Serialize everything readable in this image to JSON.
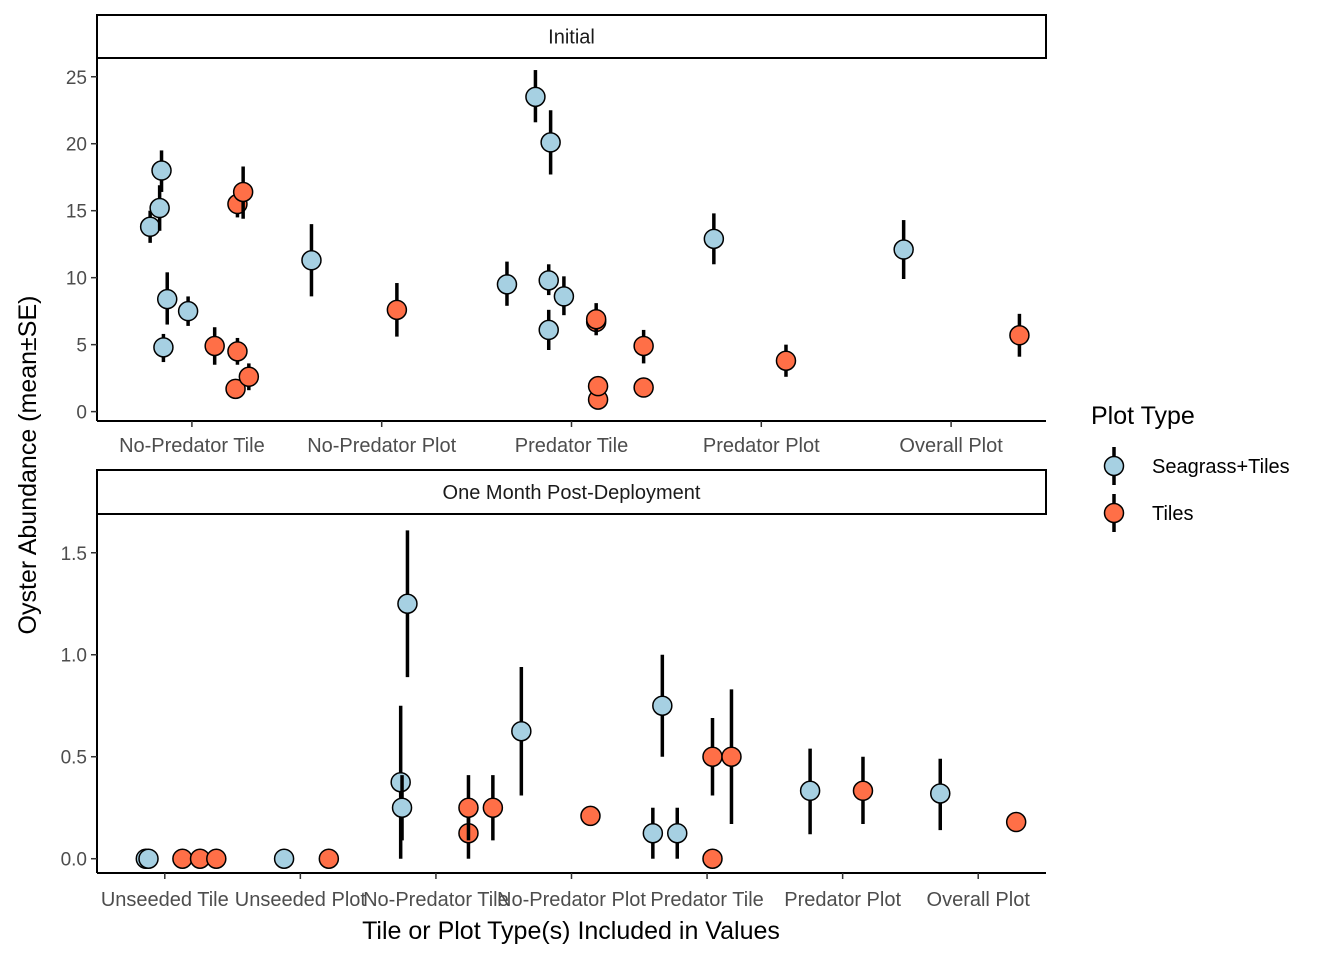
{
  "chart_data": {
    "type": "scatter",
    "ylabel": "Oyster Abundance (mean±SE)",
    "xlabel": "Tile or Plot Type(s) Included in Values",
    "legend": {
      "title": "Plot Type",
      "placement": "right",
      "entries": [
        {
          "name": "Seagrass+Tiles",
          "color": "#A6D0E2"
        },
        {
          "name": "Tiles",
          "color": "#FF6F47"
        }
      ]
    },
    "error_bar_color": "#000000",
    "panels": [
      {
        "name": "initial",
        "strip": "Initial",
        "categories": [
          "No-Predator Tile",
          "No-Predator Plot",
          "Predator Tile",
          "Predator Plot",
          "Overall Plot"
        ],
        "ylim": [
          -0.7,
          26.4
        ],
        "yticks": [
          0,
          5,
          10,
          15,
          20,
          25
        ],
        "ytick_labels": [
          "0",
          "5",
          "10",
          "15",
          "20",
          "25"
        ],
        "points": [
          {
            "series": "Seagrass+Tiles",
            "x": 0.78,
            "y": 13.8,
            "lo": 12.6,
            "hi": 15.0
          },
          {
            "series": "Seagrass+Tiles",
            "x": 0.83,
            "y": 15.2,
            "lo": 13.5,
            "hi": 16.9
          },
          {
            "series": "Seagrass+Tiles",
            "x": 0.84,
            "y": 18.0,
            "lo": 16.4,
            "hi": 19.5
          },
          {
            "series": "Seagrass+Tiles",
            "x": 0.85,
            "y": 4.8,
            "lo": 3.7,
            "hi": 5.8
          },
          {
            "series": "Seagrass+Tiles",
            "x": 0.87,
            "y": 8.4,
            "lo": 6.5,
            "hi": 10.4
          },
          {
            "series": "Seagrass+Tiles",
            "x": 0.98,
            "y": 7.5,
            "lo": 6.4,
            "hi": 8.6
          },
          {
            "series": "Tiles",
            "x": 1.12,
            "y": 4.9,
            "lo": 3.5,
            "hi": 6.3
          },
          {
            "series": "Tiles",
            "x": 1.23,
            "y": 1.7,
            "lo": 1.2,
            "hi": 2.2
          },
          {
            "series": "Tiles",
            "x": 1.24,
            "y": 4.5,
            "lo": 3.5,
            "hi": 5.5
          },
          {
            "series": "Tiles",
            "x": 1.24,
            "y": 15.5,
            "lo": 14.5,
            "hi": 16.5
          },
          {
            "series": "Tiles",
            "x": 1.27,
            "y": 16.4,
            "lo": 14.4,
            "hi": 18.3
          },
          {
            "series": "Tiles",
            "x": 1.3,
            "y": 2.6,
            "lo": 1.6,
            "hi": 3.6
          },
          {
            "series": "Seagrass+Tiles",
            "x": 1.63,
            "y": 11.3,
            "lo": 8.6,
            "hi": 14.0
          },
          {
            "series": "Tiles",
            "x": 2.08,
            "y": 7.6,
            "lo": 5.6,
            "hi": 9.6
          },
          {
            "series": "Seagrass+Tiles",
            "x": 2.66,
            "y": 9.5,
            "lo": 7.9,
            "hi": 11.2
          },
          {
            "series": "Seagrass+Tiles",
            "x": 2.81,
            "y": 23.5,
            "lo": 21.6,
            "hi": 25.5
          },
          {
            "series": "Seagrass+Tiles",
            "x": 2.88,
            "y": 6.1,
            "lo": 4.6,
            "hi": 7.6
          },
          {
            "series": "Seagrass+Tiles",
            "x": 2.88,
            "y": 9.8,
            "lo": 8.7,
            "hi": 11.0
          },
          {
            "series": "Seagrass+Tiles",
            "x": 2.89,
            "y": 20.1,
            "lo": 17.7,
            "hi": 22.5
          },
          {
            "series": "Seagrass+Tiles",
            "x": 2.96,
            "y": 8.6,
            "lo": 7.2,
            "hi": 10.1
          },
          {
            "series": "Tiles",
            "x": 3.13,
            "y": 6.7,
            "lo": 5.7,
            "hi": 7.7
          },
          {
            "series": "Tiles",
            "x": 3.13,
            "y": 6.9,
            "lo": 6.0,
            "hi": 8.1
          },
          {
            "series": "Tiles",
            "x": 3.14,
            "y": 0.9,
            "lo": 0.5,
            "hi": 1.3
          },
          {
            "series": "Tiles",
            "x": 3.14,
            "y": 1.9,
            "lo": 1.3,
            "hi": 2.5
          },
          {
            "series": "Tiles",
            "x": 3.38,
            "y": 1.8,
            "lo": 1.4,
            "hi": 2.2
          },
          {
            "series": "Tiles",
            "x": 3.38,
            "y": 4.9,
            "lo": 3.6,
            "hi": 6.1
          },
          {
            "series": "Seagrass+Tiles",
            "x": 3.75,
            "y": 12.9,
            "lo": 11.0,
            "hi": 14.8
          },
          {
            "series": "Tiles",
            "x": 4.13,
            "y": 3.8,
            "lo": 2.6,
            "hi": 5.0
          },
          {
            "series": "Seagrass+Tiles",
            "x": 4.75,
            "y": 12.1,
            "lo": 9.9,
            "hi": 14.3
          },
          {
            "series": "Tiles",
            "x": 5.36,
            "y": 5.7,
            "lo": 4.1,
            "hi": 7.3
          }
        ]
      },
      {
        "name": "post",
        "strip": "One Month Post-Deployment",
        "categories": [
          "Unseeded Tile",
          "Unseeded Plot",
          "No-Predator Tile",
          "No-Predator Plot",
          "Predator Tile",
          "Predator Plot",
          "Overall Plot"
        ],
        "ylim": [
          -0.07,
          1.69
        ],
        "yticks": [
          0,
          0.5,
          1.0,
          1.5
        ],
        "ytick_labels": [
          "0.0",
          "0.5",
          "1.0",
          "1.5"
        ],
        "points": [
          {
            "series": "Seagrass+Tiles",
            "x": 0.86,
            "y": 0.0,
            "lo": 0.0,
            "hi": 0.0
          },
          {
            "series": "Seagrass+Tiles",
            "x": 0.88,
            "y": 0.0,
            "lo": 0.0,
            "hi": 0.0
          },
          {
            "series": "Tiles",
            "x": 1.13,
            "y": 0.0,
            "lo": 0.0,
            "hi": 0.0
          },
          {
            "series": "Tiles",
            "x": 1.26,
            "y": 0.0,
            "lo": 0.0,
            "hi": 0.0
          },
          {
            "series": "Tiles",
            "x": 1.38,
            "y": 0.0,
            "lo": 0.0,
            "hi": 0.0
          },
          {
            "series": "Seagrass+Tiles",
            "x": 1.88,
            "y": 0.0,
            "lo": 0.0,
            "hi": 0.0
          },
          {
            "series": "Tiles",
            "x": 2.21,
            "y": 0.0,
            "lo": 0.0,
            "hi": 0.0
          },
          {
            "series": "Seagrass+Tiles",
            "x": 2.74,
            "y": 0.375,
            "lo": 0.0,
            "hi": 0.75
          },
          {
            "series": "Seagrass+Tiles",
            "x": 2.75,
            "y": 0.25,
            "lo": 0.09,
            "hi": 0.41
          },
          {
            "series": "Seagrass+Tiles",
            "x": 2.79,
            "y": 1.25,
            "lo": 0.89,
            "hi": 1.61
          },
          {
            "series": "Tiles",
            "x": 3.24,
            "y": 0.125,
            "lo": 0.0,
            "hi": 0.25
          },
          {
            "series": "Tiles",
            "x": 3.24,
            "y": 0.25,
            "lo": 0.09,
            "hi": 0.41
          },
          {
            "series": "Tiles",
            "x": 3.42,
            "y": 0.25,
            "lo": 0.09,
            "hi": 0.41
          },
          {
            "series": "Seagrass+Tiles",
            "x": 3.63,
            "y": 0.625,
            "lo": 0.31,
            "hi": 0.94
          },
          {
            "series": "Tiles",
            "x": 4.14,
            "y": 0.21,
            "lo": 0.21,
            "hi": 0.21
          },
          {
            "series": "Seagrass+Tiles",
            "x": 4.6,
            "y": 0.125,
            "lo": 0.0,
            "hi": 0.25
          },
          {
            "series": "Seagrass+Tiles",
            "x": 4.67,
            "y": 0.75,
            "lo": 0.5,
            "hi": 1.0
          },
          {
            "series": "Seagrass+Tiles",
            "x": 4.78,
            "y": 0.125,
            "lo": 0.0,
            "hi": 0.25
          },
          {
            "series": "Tiles",
            "x": 5.04,
            "y": 0.0,
            "lo": 0.0,
            "hi": 0.0
          },
          {
            "series": "Tiles",
            "x": 5.04,
            "y": 0.5,
            "lo": 0.31,
            "hi": 0.69
          },
          {
            "series": "Tiles",
            "x": 5.18,
            "y": 0.5,
            "lo": 0.17,
            "hi": 0.83
          },
          {
            "series": "Seagrass+Tiles",
            "x": 5.76,
            "y": 0.333,
            "lo": 0.12,
            "hi": 0.54
          },
          {
            "series": "Tiles",
            "x": 6.15,
            "y": 0.333,
            "lo": 0.17,
            "hi": 0.5
          },
          {
            "series": "Seagrass+Tiles",
            "x": 6.72,
            "y": 0.32,
            "lo": 0.14,
            "hi": 0.49
          },
          {
            "series": "Tiles",
            "x": 7.28,
            "y": 0.18,
            "lo": 0.18,
            "hi": 0.18
          }
        ]
      }
    ]
  }
}
